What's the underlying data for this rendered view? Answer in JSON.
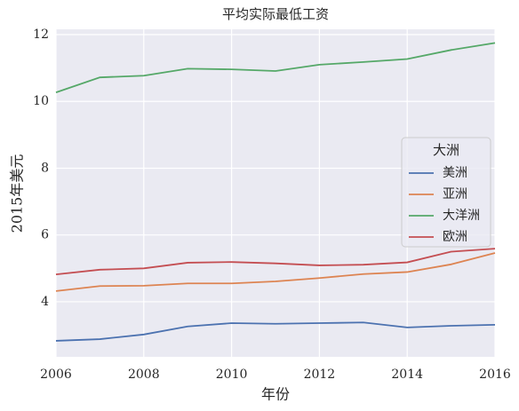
{
  "chart_data": {
    "type": "line",
    "title": "平均实际最低工资",
    "xlabel": "年份",
    "ylabel": "2015年美元",
    "x": [
      2006,
      2007,
      2008,
      2009,
      2010,
      2011,
      2012,
      2013,
      2014,
      2015,
      2016
    ],
    "xlim": [
      2006,
      2016
    ],
    "xticks": [
      2006,
      2008,
      2010,
      2012,
      2014,
      2016
    ],
    "ylim": [
      2.35,
      12.16
    ],
    "yticks": [
      4,
      6,
      8,
      10,
      12
    ],
    "grid": true,
    "legend_title": "大洲",
    "legend_position": "right",
    "series": [
      {
        "name": "美洲",
        "color": "#4c72b0",
        "values": [
          2.83,
          2.88,
          3.02,
          3.26,
          3.36,
          3.34,
          3.36,
          3.38,
          3.23,
          3.28,
          3.31
        ]
      },
      {
        "name": "亚洲",
        "color": "#dd8452",
        "values": [
          4.32,
          4.47,
          4.48,
          4.55,
          4.55,
          4.61,
          4.71,
          4.83,
          4.89,
          5.12,
          5.46
        ]
      },
      {
        "name": "大洋洲",
        "color": "#55a868",
        "values": [
          10.27,
          10.72,
          10.77,
          10.98,
          10.96,
          10.91,
          11.1,
          11.18,
          11.27,
          11.54,
          11.75
        ]
      },
      {
        "name": "欧洲",
        "color": "#c44e52",
        "values": [
          4.82,
          4.96,
          5.0,
          5.17,
          5.19,
          5.15,
          5.09,
          5.11,
          5.18,
          5.5,
          5.59
        ]
      }
    ]
  }
}
